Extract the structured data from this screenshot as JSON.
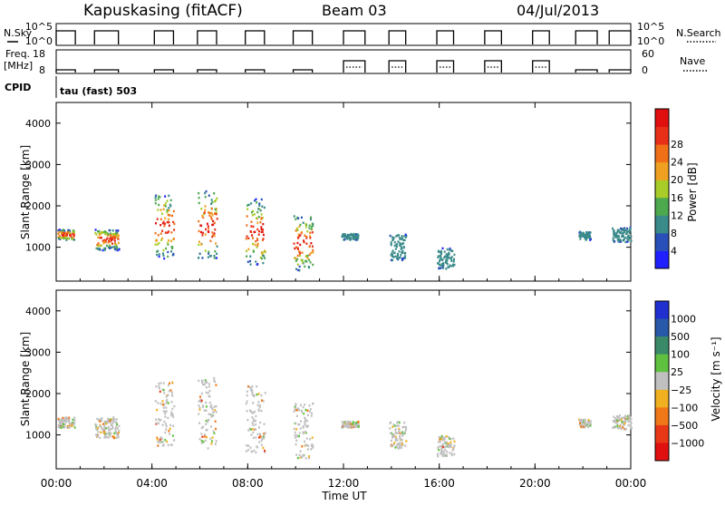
{
  "header": {
    "station": "Kapuskasing (fitACF)",
    "beam": "Beam 03",
    "date": "04/Jul/2013"
  },
  "status_panels": {
    "nsky_label": "N.Sky",
    "nsky_ticks": [
      "10^5",
      "10^0"
    ],
    "nsearch_label": "N.Search",
    "nsearch_ticks": [
      "10^5",
      "10^0"
    ],
    "freq_label_1": "Freq.",
    "freq_label_2": "[MHz]",
    "freq_ticks": [
      "18",
      "8"
    ],
    "nave_label": "Nave",
    "nave_ticks": [
      "60",
      "0"
    ],
    "cpid_label": "CPID",
    "cpid_value": "tau (fast) 503",
    "blocks": [
      {
        "start": 0.0,
        "end": 0.8,
        "freq": 10
      },
      {
        "start": 1.6,
        "end": 2.6,
        "freq": 10
      },
      {
        "start": 4.1,
        "end": 4.9,
        "freq": 10
      },
      {
        "start": 5.9,
        "end": 6.7,
        "freq": 10
      },
      {
        "start": 7.9,
        "end": 8.7,
        "freq": 10
      },
      {
        "start": 9.9,
        "end": 10.7,
        "freq": 10
      },
      {
        "start": 12.0,
        "end": 12.9,
        "freq": 15
      },
      {
        "start": 13.9,
        "end": 14.6,
        "freq": 15
      },
      {
        "start": 15.9,
        "end": 16.6,
        "freq": 15
      },
      {
        "start": 17.9,
        "end": 18.6,
        "freq": 15
      },
      {
        "start": 19.9,
        "end": 20.6,
        "freq": 15
      },
      {
        "start": 21.7,
        "end": 22.6,
        "freq": 10
      },
      {
        "start": 23.1,
        "end": 24.0,
        "freq": 10
      }
    ]
  },
  "chart_data": [
    {
      "type": "heatmap",
      "panel": "power",
      "ylabel": "Slant Range [km]",
      "colorbar_label": "Power [dB]",
      "colorbar_ticks": [
        "4",
        "8",
        "12",
        "16",
        "20",
        "24",
        "28"
      ],
      "colorbar_colors": [
        "#2020ff",
        "#2850b8",
        "#3a8a8a",
        "#4ea84e",
        "#a8cc28",
        "#f0a020",
        "#f07018",
        "#e83018",
        "#e01010"
      ],
      "ylim": [
        180,
        4500
      ],
      "yticks": [
        "1000",
        "2000",
        "3000",
        "4000"
      ],
      "ytick_values": [
        1000,
        2000,
        3000,
        4000
      ],
      "clusters": [
        {
          "t0": 0.05,
          "t1": 0.75,
          "r0": 1200,
          "r1": 1450
        },
        {
          "t0": 1.6,
          "t1": 2.6,
          "r0": 950,
          "r1": 1450
        },
        {
          "t0": 4.1,
          "t1": 4.9,
          "r0": 750,
          "r1": 2300
        },
        {
          "t0": 5.9,
          "t1": 6.7,
          "r0": 700,
          "r1": 2400
        },
        {
          "t0": 7.9,
          "t1": 8.7,
          "r0": 600,
          "r1": 2200
        },
        {
          "t0": 9.9,
          "t1": 10.7,
          "r0": 450,
          "r1": 1800
        },
        {
          "t0": 11.9,
          "t1": 12.6,
          "r0": 1200,
          "r1": 1350
        },
        {
          "t0": 13.9,
          "t1": 14.6,
          "r0": 700,
          "r1": 1350
        },
        {
          "t0": 15.9,
          "t1": 16.6,
          "r0": 500,
          "r1": 1000
        },
        {
          "t0": 21.8,
          "t1": 22.3,
          "r0": 1200,
          "r1": 1400
        },
        {
          "t0": 23.2,
          "t1": 24.0,
          "r0": 1150,
          "r1": 1500
        }
      ]
    },
    {
      "type": "heatmap",
      "panel": "velocity",
      "ylabel": "Slant Range [km]",
      "colorbar_label": "Velocity [m s⁻¹]",
      "colorbar_ticks": [
        "1000",
        "500",
        "100",
        "25",
        "−25",
        "−100",
        "−500",
        "−1000"
      ],
      "colorbar_colors": [
        "#2030d0",
        "#2858a8",
        "#3a8a6a",
        "#60c040",
        "#c0c0c0",
        "#f0b020",
        "#f07818",
        "#e83818",
        "#e01010"
      ],
      "ylim": [
        180,
        4500
      ],
      "yticks": [
        "1000",
        "2000",
        "3000",
        "4000"
      ],
      "ytick_values": [
        1000,
        2000,
        3000,
        4000
      ],
      "xlabel": "Time UT",
      "xticks": [
        "00:00",
        "04:00",
        "08:00",
        "12:00",
        "16:00",
        "20:00",
        "00:00"
      ],
      "xtick_values": [
        0,
        4,
        8,
        12,
        16,
        20,
        24
      ],
      "xlim": [
        0,
        24
      ]
    }
  ]
}
